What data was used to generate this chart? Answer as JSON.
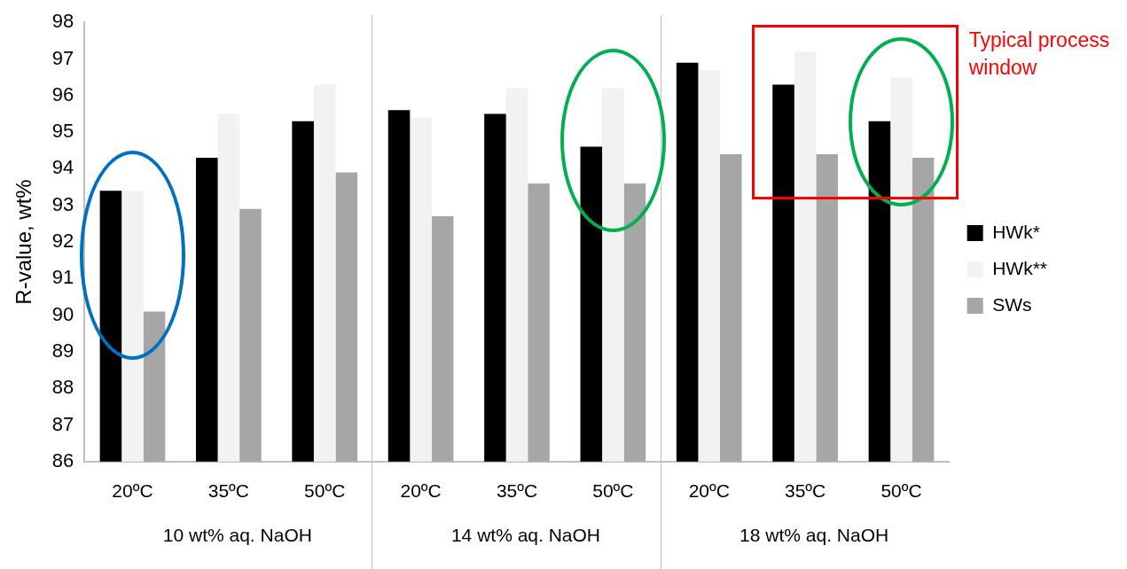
{
  "chart_data": {
    "type": "bar",
    "ylabel": "R-value, wt%",
    "categories": [
      "20ºC",
      "35ºC",
      "50ºC",
      "20ºC",
      "35ºC",
      "50ºC",
      "20ºC",
      "35ºC",
      "50ºC"
    ],
    "series": [
      {
        "name": "HWk*",
        "color": "#000000",
        "values": [
          93.4,
          94.3,
          95.3,
          95.6,
          95.5,
          94.6,
          96.9,
          96.3,
          95.3
        ]
      },
      {
        "name": "HWk**",
        "color": "#f2f2f2",
        "values": [
          93.4,
          95.5,
          96.3,
          95.4,
          96.2,
          96.2,
          96.7,
          97.2,
          96.5
        ]
      },
      {
        "name": "SWs",
        "color": "#a6a6a6",
        "values": [
          90.1,
          92.9,
          93.9,
          92.7,
          93.6,
          93.6,
          94.4,
          94.4,
          94.3
        ]
      }
    ],
    "ylim": [
      86,
      98
    ],
    "yticks": [
      86,
      87,
      88,
      89,
      90,
      91,
      92,
      93,
      94,
      95,
      96,
      97,
      98
    ],
    "grid": false,
    "legend": "right",
    "annotations": [
      "10 wt% aq. NaOH",
      "14 wt% aq. NaOH",
      "18 wt% aq. NaOH",
      "Typical process window"
    ]
  }
}
